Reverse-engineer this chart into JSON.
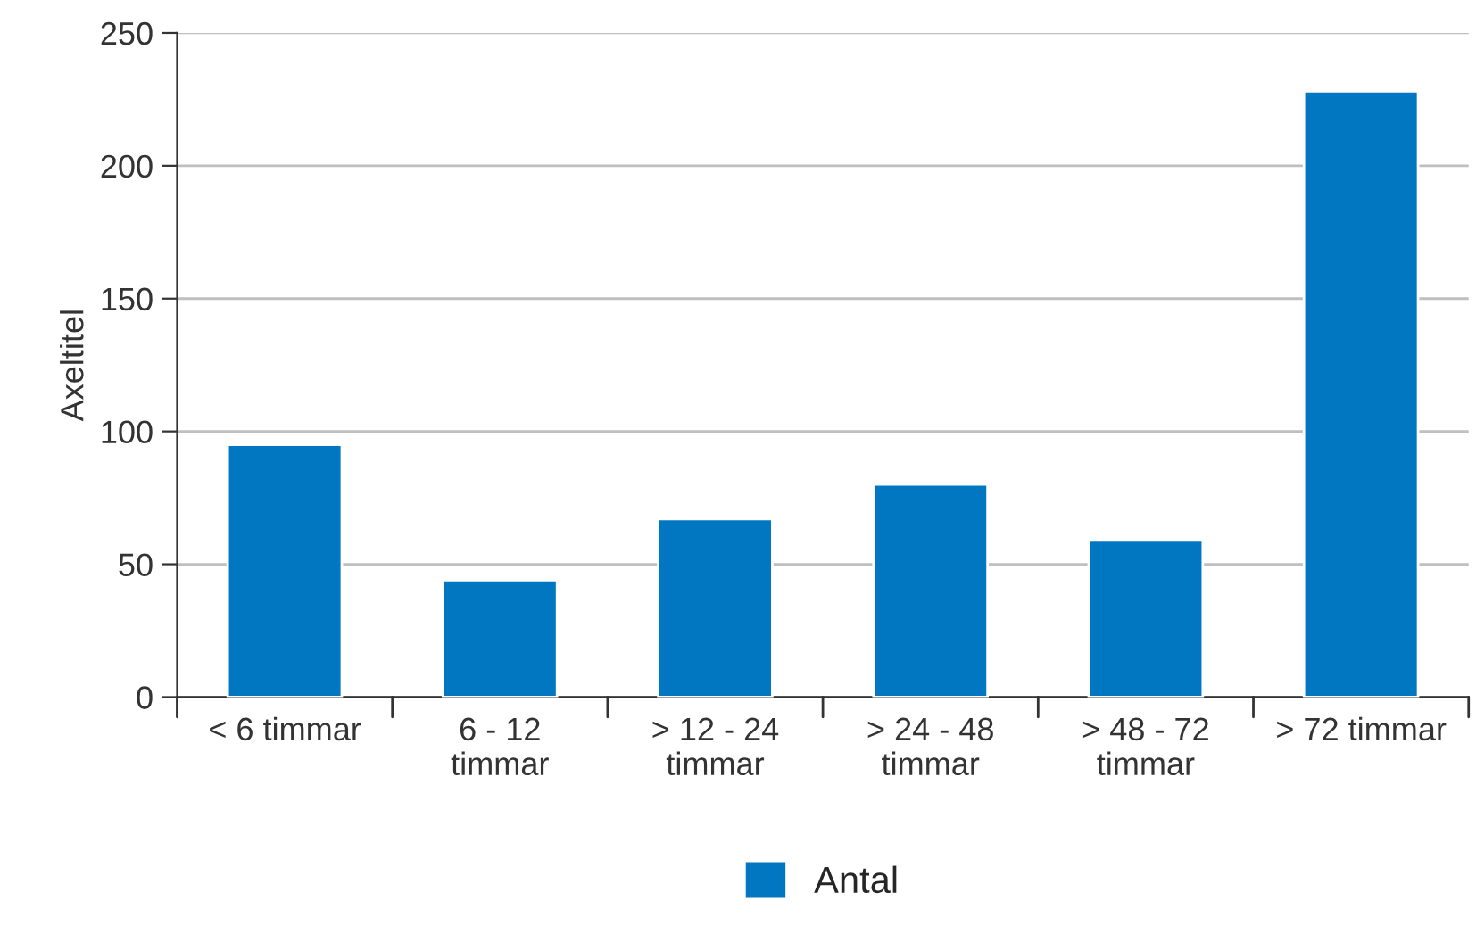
{
  "chart_data": {
    "type": "bar",
    "ylabel": "Axeltitel",
    "categories": [
      "< 6 timmar",
      "6 - 12\ntimmar",
      "> 12 - 24\ntimmar",
      "> 24 - 48\ntimmar",
      "> 48 - 72\ntimmar",
      "> 72 timmar"
    ],
    "series": [
      {
        "name": "Antal",
        "color": "#0077c0",
        "values": [
          95,
          44,
          67,
          80,
          59,
          228
        ]
      }
    ],
    "ylim": [
      0,
      250
    ],
    "yticks": [
      0,
      50,
      100,
      150,
      200,
      250
    ],
    "grid": "y",
    "legend": "bottom"
  }
}
